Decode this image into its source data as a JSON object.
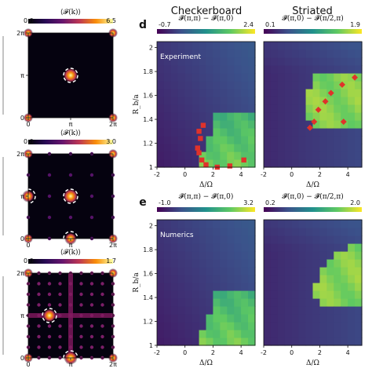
{
  "figure": {
    "col_titles": [
      "Checkerboard",
      "Striated"
    ],
    "panel_letters": [
      "d",
      "e"
    ],
    "row_labels": [
      "Experiment",
      "Numerics"
    ]
  },
  "chart_data": [
    {
      "type": "heatmap",
      "panel": "left-1",
      "title": "⟨𝓕(k)⟩",
      "colorbar": {
        "min": "0.0",
        "max": "6.5",
        "cmap": "inferno"
      },
      "xticks": [
        "0",
        "π",
        "2π"
      ],
      "yticks": [
        "0",
        "π",
        "2π"
      ],
      "peaks": [
        {
          "kx": 3.1416,
          "ky": 3.1416,
          "intensity": 1.0,
          "circled": true
        }
      ],
      "corner_peaks": true
    },
    {
      "type": "heatmap",
      "panel": "left-2",
      "title": "⟨𝓕(k)⟩",
      "colorbar": {
        "min": "0.0",
        "max": "3.0",
        "cmap": "inferno"
      },
      "xticks": [
        "0",
        "π",
        "2π"
      ],
      "yticks": [
        "0",
        "π",
        "2π"
      ],
      "peaks": [
        {
          "kx": 3.1416,
          "ky": 3.1416,
          "intensity": 1.0,
          "circled": true
        },
        {
          "kx": 0,
          "ky": 3.1416,
          "intensity": 0.8,
          "circled": true
        },
        {
          "kx": 3.1416,
          "ky": 0,
          "intensity": 0.8,
          "circled": true
        }
      ],
      "corner_peaks": true
    },
    {
      "type": "heatmap",
      "panel": "left-3",
      "title": "⟨𝓕(k)⟩",
      "colorbar": {
        "min": "0.0",
        "max": "1.7",
        "cmap": "inferno"
      },
      "xticks": [
        "0",
        "π",
        "2π"
      ],
      "yticks": [
        "0",
        "π",
        "2π"
      ],
      "peaks": [
        {
          "kx": 1.5708,
          "ky": 3.1416,
          "intensity": 0.9,
          "circled": true
        },
        {
          "kx": 3.1416,
          "ky": 0,
          "intensity": 0.9,
          "circled": true
        }
      ],
      "corner_peaks": true
    },
    {
      "type": "heatmap",
      "panel": "d-checkerboard",
      "title": "𝓕̃(π,π) − 𝓕̃(π,0)",
      "colorbar": {
        "min": "-0.7",
        "max": "2.4",
        "cmap": "viridis"
      },
      "xlabel": "Δ/Ω",
      "ylabel": "R_b/a",
      "xlim": [
        -2,
        5
      ],
      "ylim": [
        1.0,
        2.05
      ],
      "xticks": [
        "-2",
        "0",
        "2",
        "4"
      ],
      "yticks": [
        "1",
        "1.2",
        "1.4",
        "1.6",
        "1.8",
        "2"
      ],
      "phase_boundary": [
        [
          1.2,
          1.0
        ],
        [
          1.1,
          1.08
        ],
        [
          0.9,
          1.16
        ],
        [
          1.0,
          1.24
        ],
        [
          1.3,
          1.32
        ],
        [
          1.5,
          1.38
        ],
        [
          2.2,
          1.42
        ],
        [
          3.3,
          1.45
        ],
        [
          4.5,
          1.47
        ]
      ],
      "markers": [
        {
          "x": 1.3,
          "y": 1.35
        },
        {
          "x": 1.0,
          "y": 1.3
        },
        {
          "x": 1.1,
          "y": 1.24
        },
        {
          "x": 0.9,
          "y": 1.16
        },
        {
          "x": 1.0,
          "y": 1.12
        },
        {
          "x": 1.2,
          "y": 1.06
        },
        {
          "x": 1.5,
          "y": 1.02
        },
        {
          "x": 2.3,
          "y": 1.0
        },
        {
          "x": 3.2,
          "y": 1.01
        },
        {
          "x": 4.2,
          "y": 1.06
        }
      ],
      "in_label": "Experiment"
    },
    {
      "type": "heatmap",
      "panel": "d-striated",
      "title": "𝓕̃(π,0) − 𝓕̃(π/2,π)",
      "colorbar": {
        "min": "0.1",
        "max": "1.9",
        "cmap": "viridis"
      },
      "xlabel": "Δ/Ω",
      "xlim": [
        -2,
        5
      ],
      "ylim": [
        1.0,
        2.05
      ],
      "xticks": [
        "-2",
        "0",
        "2",
        "4"
      ],
      "phase_boundary": [
        [
          1.5,
          1.8
        ],
        [
          1.2,
          1.65
        ],
        [
          1.1,
          1.5
        ],
        [
          1.3,
          1.38
        ],
        [
          2.0,
          1.32
        ],
        [
          4.5,
          1.3
        ]
      ],
      "markers": [
        {
          "x": 4.5,
          "y": 1.75
        },
        {
          "x": 3.6,
          "y": 1.69
        },
        {
          "x": 2.8,
          "y": 1.62
        },
        {
          "x": 2.4,
          "y": 1.55
        },
        {
          "x": 1.9,
          "y": 1.48
        },
        {
          "x": 1.6,
          "y": 1.38
        },
        {
          "x": 1.3,
          "y": 1.33
        },
        {
          "x": 3.7,
          "y": 1.38
        }
      ]
    },
    {
      "type": "heatmap",
      "panel": "e-checkerboard",
      "title": "𝓕̃(π,π) − 𝓕̃(π,0)",
      "colorbar": {
        "min": "-1.0",
        "max": "3.2",
        "cmap": "viridis"
      },
      "xlabel": "Δ/Ω",
      "ylabel": "R_b/a",
      "xlim": [
        -2,
        5
      ],
      "ylim": [
        1.0,
        2.05
      ],
      "xticks": [
        "-2",
        "0",
        "2",
        "4"
      ],
      "yticks": [
        "1",
        "1.2",
        "1.4",
        "1.6",
        "1.8",
        "2"
      ],
      "phase_boundary": [
        [
          1.4,
          1.0
        ],
        [
          1.2,
          1.1
        ],
        [
          1.3,
          1.22
        ],
        [
          1.9,
          1.3
        ],
        [
          3.3,
          1.36
        ],
        [
          4.5,
          1.4
        ]
      ],
      "in_label": "Numerics"
    },
    {
      "type": "heatmap",
      "panel": "e-striated",
      "title": "𝓕̃(π,0) − 𝓕̃(π/2,π)",
      "colorbar": {
        "min": "0.2",
        "max": "2.0",
        "cmap": "viridis"
      },
      "xlabel": "Δ/Ω",
      "xlim": [
        -2,
        5
      ],
      "ylim": [
        1.0,
        2.05
      ],
      "xticks": [
        "-2",
        "0",
        "2",
        "4"
      ],
      "phase_boundary": [
        [
          4.5,
          1.85
        ],
        [
          3.5,
          1.78
        ],
        [
          2.5,
          1.68
        ],
        [
          1.8,
          1.55
        ],
        [
          1.6,
          1.44
        ],
        [
          2.2,
          1.34
        ],
        [
          4.5,
          1.3
        ]
      ]
    }
  ]
}
